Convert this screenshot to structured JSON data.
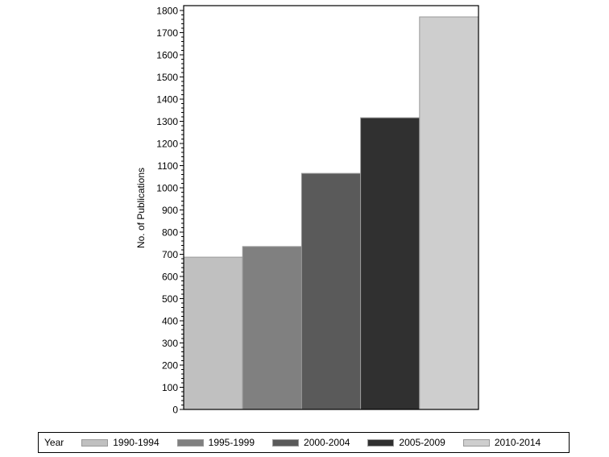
{
  "chart_data": {
    "type": "bar",
    "title": "",
    "xlabel": "",
    "ylabel": "No. of Publications",
    "ylim": [
      0,
      1800
    ],
    "yticks": [
      0,
      100,
      200,
      300,
      400,
      500,
      600,
      700,
      800,
      900,
      1000,
      1100,
      1200,
      1300,
      1400,
      1500,
      1600,
      1700,
      1800
    ],
    "grid": false,
    "legend_position": "bottom",
    "legend_title": "Year",
    "categories": [
      "1990-1994",
      "1995-1999",
      "2000-2004",
      "2005-2009",
      "2010-2014"
    ],
    "values": [
      687,
      735,
      1065,
      1316,
      1771
    ],
    "colors": [
      "#c0c0c0",
      "#808080",
      "#5a5a5a",
      "#303030",
      "#cecece"
    ]
  }
}
